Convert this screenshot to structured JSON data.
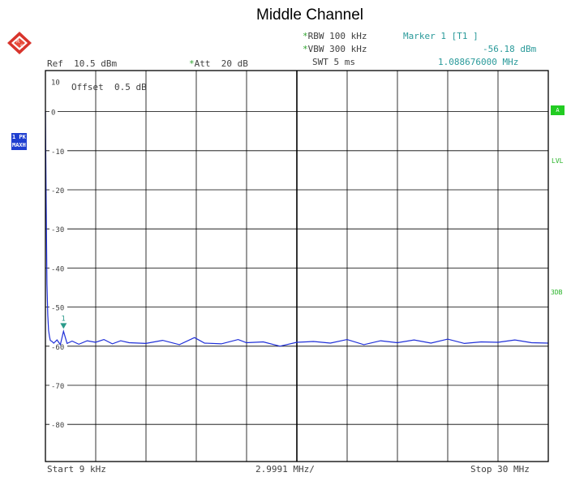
{
  "title": "Middle Channel",
  "header": {
    "rbw": "RBW 100 kHz",
    "vbw": "VBW 300 kHz",
    "swt": "SWT 5 ms",
    "marker_title": "Marker 1 [T1 ]",
    "marker_level": "-56.18 dBm",
    "marker_freq": "1.088676000 MHz",
    "ref": "Ref  10.5 dBm",
    "att": "Att  20 dB",
    "offset": "Offset  0.5 dB"
  },
  "side": {
    "trace_mode_1": "1 PK",
    "trace_mode_2": "MAXH",
    "right_a": "A",
    "right_lvl": "LVL",
    "right_3db": "3DB"
  },
  "footer": {
    "start": "Start 9 kHz",
    "div": "2.9991 MHz/",
    "stop": "Stop 30 MHz"
  },
  "colors": {
    "trace": "#1f2fd8",
    "marker": "#2a9a8a",
    "grid": "#000000",
    "accent_green": "#22cc22"
  },
  "chart_data": {
    "type": "line",
    "x_unit": "MHz",
    "y_unit": "dBm",
    "xlim": [
      0.009,
      30
    ],
    "ylim": [
      -89.5,
      10.5
    ],
    "ytick_labels": [
      "10",
      "0",
      "-10",
      "-20",
      "-30",
      "-40",
      "-50",
      "-60",
      "-70",
      "-80"
    ],
    "ytick_values": [
      10,
      0,
      -10,
      -20,
      -30,
      -40,
      -50,
      -60,
      -70,
      -80
    ],
    "grid": true,
    "series": [
      {
        "x": [
          0.009,
          0.05,
          0.1,
          0.15,
          0.2,
          0.25,
          0.3,
          0.4,
          0.5,
          0.7,
          0.9,
          1.0888,
          1.3,
          1.6,
          2.0,
          2.5,
          3.0,
          3.5,
          4.0,
          4.5,
          5.0,
          6.0,
          7.0,
          8.0,
          8.9,
          9.5,
          10.5,
          11.5,
          12.0,
          13.0,
          14.0,
          15.0,
          16.0,
          17.0,
          18.0,
          19.0,
          20.0,
          21.0,
          22.0,
          23.0,
          24.0,
          25.0,
          26.0,
          27.0,
          28.0,
          29.0,
          30.0
        ],
        "y": [
          0,
          -20,
          -44,
          -52,
          -56,
          -57.5,
          -58.5,
          -58.8,
          -59.2,
          -58.4,
          -59.6,
          -56.18,
          -59.3,
          -58.7,
          -59.5,
          -58.6,
          -59.0,
          -58.3,
          -59.4,
          -58.6,
          -59.1,
          -59.3,
          -58.5,
          -59.6,
          -57.8,
          -59.2,
          -59.4,
          -58.3,
          -59.1,
          -58.9,
          -60.0,
          -59.0,
          -58.8,
          -59.2,
          -58.3,
          -59.6,
          -58.6,
          -59.1,
          -58.4,
          -59.2,
          -58.2,
          -59.3,
          -58.9,
          -59.0,
          -58.4,
          -59.1,
          -59.2
        ]
      }
    ],
    "markers": [
      {
        "label": "1",
        "x": 1.088676,
        "y": -56.18
      }
    ]
  }
}
